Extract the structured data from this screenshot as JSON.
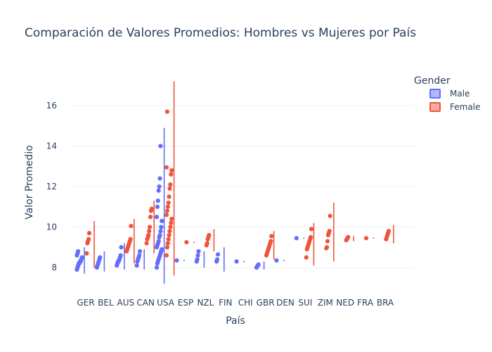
{
  "chart_data": {
    "type": "violin",
    "title": "Comparación de Valores Promedios: Hombres vs Mujeres por País",
    "xlabel": "País",
    "ylabel": "Valor Promedio",
    "ylim": [
      7.0,
      17.5
    ],
    "yticks": [
      8,
      10,
      12,
      14,
      16
    ],
    "categories": [
      "GER",
      "BEL",
      "AUS",
      "CAN",
      "USA",
      "ESP",
      "NZL",
      "FIN",
      "CHI",
      "GBR",
      "DEN",
      "SUI",
      "ZIM",
      "NED",
      "FRA",
      "BRA"
    ],
    "grid": true,
    "legend": {
      "title": "Gender",
      "placement": "top-right"
    },
    "series": [
      {
        "name": "Male",
        "color": "#636efa",
        "groups": [
          {
            "category": "GER",
            "min": 7.7,
            "max": 9.0,
            "points": [
              7.9,
              8.0,
              8.1,
              8.2,
              8.2,
              8.3,
              8.3,
              8.4,
              8.5,
              8.6,
              8.7,
              8.8
            ]
          },
          {
            "category": "BEL",
            "min": 7.8,
            "max": 8.8,
            "points": [
              8.0,
              8.1,
              8.2,
              8.3,
              8.4,
              8.5
            ]
          },
          {
            "category": "AUS",
            "min": 7.9,
            "max": 9.2,
            "points": [
              8.1,
              8.2,
              8.3,
              8.3,
              8.4,
              8.5,
              8.6,
              9.0
            ]
          },
          {
            "category": "CAN",
            "min": 7.9,
            "max": 8.9,
            "points": [
              8.1,
              8.3,
              8.4,
              8.5,
              8.6,
              8.8
            ]
          },
          {
            "category": "USA",
            "min": 7.2,
            "max": 14.9,
            "points": [
              8.0,
              8.2,
              8.3,
              8.4,
              8.5,
              8.6,
              8.7,
              8.8,
              8.9,
              9.0,
              9.1,
              9.2,
              9.3,
              9.5,
              9.6,
              9.8,
              10.0,
              10.3,
              10.5,
              11.0,
              11.3,
              11.8,
              12.0,
              12.4,
              14.0
            ]
          },
          {
            "category": "ESP",
            "min": 8.35,
            "max": 8.35,
            "points": [
              8.35
            ]
          },
          {
            "category": "NZL",
            "min": 8.0,
            "max": 8.8,
            "points": [
              8.3,
              8.4,
              8.6,
              8.8
            ]
          },
          {
            "category": "FIN",
            "min": 7.8,
            "max": 9.0,
            "points": [
              8.3,
              8.4,
              8.65
            ]
          },
          {
            "category": "CHI",
            "min": 8.3,
            "max": 8.3,
            "points": [
              8.3
            ]
          },
          {
            "category": "GBR",
            "min": 7.9,
            "max": 8.3,
            "points": [
              8.0,
              8.05,
              8.1,
              8.15
            ]
          },
          {
            "category": "DEN",
            "min": 8.35,
            "max": 8.35,
            "points": [
              8.35
            ]
          },
          {
            "category": "SUI",
            "min": 9.45,
            "max": 9.45,
            "points": [
              9.45
            ]
          }
        ]
      },
      {
        "name": "Female",
        "color": "#ef553b",
        "groups": [
          {
            "category": "GER",
            "min": 8.0,
            "max": 10.3,
            "points": [
              8.7,
              9.2,
              9.3,
              9.4,
              9.7
            ]
          },
          {
            "category": "AUS",
            "min": 8.2,
            "max": 10.4,
            "points": [
              8.8,
              8.9,
              9.0,
              9.1,
              9.2,
              9.3,
              9.4,
              10.05
            ]
          },
          {
            "category": "CAN",
            "min": 8.7,
            "max": 11.3,
            "points": [
              9.2,
              9.4,
              9.5,
              9.6,
              9.8,
              10.0,
              10.5,
              10.8,
              10.9
            ]
          },
          {
            "category": "USA",
            "min": 7.6,
            "max": 17.2,
            "points": [
              8.6,
              9.0,
              9.2,
              9.4,
              9.6,
              9.8,
              10.0,
              10.2,
              10.4,
              10.6,
              10.8,
              11.0,
              11.2,
              11.5,
              11.9,
              12.1,
              12.6,
              12.8,
              12.95,
              15.7
            ]
          },
          {
            "category": "ESP",
            "min": 9.25,
            "max": 9.25,
            "points": [
              9.25
            ]
          },
          {
            "category": "NZL",
            "min": 8.8,
            "max": 9.9,
            "points": [
              9.1,
              9.2,
              9.4,
              9.5,
              9.6
            ]
          },
          {
            "category": "GBR",
            "min": 8.4,
            "max": 9.8,
            "points": [
              8.6,
              8.7,
              8.8,
              8.9,
              9.0,
              9.1,
              9.2,
              9.3,
              9.55
            ]
          },
          {
            "category": "SUI",
            "min": 8.1,
            "max": 10.2,
            "points": [
              8.5,
              8.9,
              9.0,
              9.1,
              9.2,
              9.3,
              9.4,
              9.5,
              9.9
            ]
          },
          {
            "category": "ZIM",
            "min": 8.3,
            "max": 11.2,
            "points": [
              8.95,
              9.0,
              9.3,
              9.6,
              9.7,
              9.8,
              10.55
            ]
          },
          {
            "category": "NED",
            "min": 9.3,
            "max": 9.55,
            "points": [
              9.35,
              9.4,
              9.45,
              9.5
            ]
          },
          {
            "category": "FRA",
            "min": 9.45,
            "max": 9.45,
            "points": [
              9.45
            ]
          },
          {
            "category": "BRA",
            "min": 9.2,
            "max": 10.1,
            "points": [
              9.4,
              9.5,
              9.6,
              9.7,
              9.8
            ]
          }
        ]
      }
    ]
  }
}
